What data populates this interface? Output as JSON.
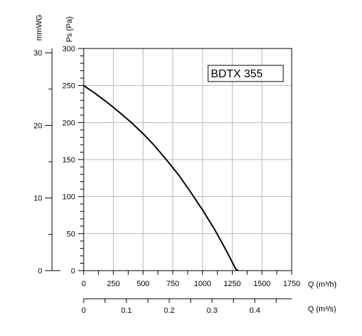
{
  "chart_data": {
    "type": "line",
    "title": "BDTX 355",
    "primary_x_axis": {
      "label": "Q (m³/h)",
      "range": [
        0,
        1750
      ],
      "ticks": [
        "0",
        "250",
        "500",
        "750",
        "1000",
        "1250",
        "1500",
        "1750"
      ],
      "tick_values": [
        0,
        250,
        500,
        750,
        1000,
        1250,
        1500,
        1750
      ]
    },
    "secondary_x_axis": {
      "label": "Q (m³/s)",
      "ticks": [
        "0",
        "0.1",
        "0.2",
        "0.3",
        "0.4"
      ],
      "tick_values": [
        0,
        0.1,
        0.2,
        0.3,
        0.4
      ]
    },
    "primary_y_axis": {
      "label": "Ps (Pa)",
      "range": [
        0,
        300
      ],
      "ticks": [
        "0",
        "50",
        "100",
        "150",
        "200",
        "250",
        "300"
      ],
      "tick_values": [
        0,
        50,
        100,
        150,
        200,
        250,
        300
      ]
    },
    "secondary_y_axis": {
      "label": "mmWG",
      "ticks": [
        "0",
        "10",
        "20",
        "30"
      ],
      "tick_values": [
        0,
        10,
        20,
        30
      ]
    },
    "grid": true,
    "series": [
      {
        "x": [
          0,
          100,
          200,
          300,
          400,
          500,
          600,
          700,
          800,
          900,
          1000,
          1100,
          1200,
          1280,
          1300
        ],
        "y": [
          250,
          239,
          227,
          214,
          200,
          185,
          168,
          149,
          129,
          106,
          82,
          56,
          27,
          2,
          0
        ]
      }
    ]
  }
}
